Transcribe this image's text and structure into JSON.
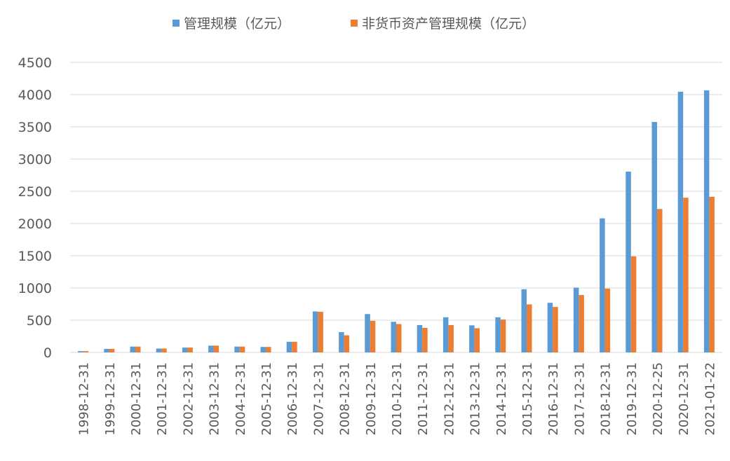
{
  "chart_data": {
    "type": "bar",
    "title": "",
    "xlabel": "",
    "ylabel": "",
    "ylim": [
      0,
      4500
    ],
    "yticks": [
      0,
      500,
      1000,
      1500,
      2000,
      2500,
      3000,
      3500,
      4000,
      4500
    ],
    "grid": true,
    "legend_position": "top-center",
    "categories": [
      "1998-12-31",
      "1999-12-31",
      "2000-12-31",
      "2001-12-31",
      "2002-12-31",
      "2003-12-31",
      "2004-12-31",
      "2005-12-31",
      "2006-12-31",
      "2007-12-31",
      "2008-12-31",
      "2009-12-31",
      "2010-12-31",
      "2011-12-31",
      "2012-12-31",
      "2013-12-31",
      "2014-12-31",
      "2015-12-31",
      "2016-12-31",
      "2017-12-31",
      "2018-12-31",
      "2019-12-31",
      "2020-12-25",
      "2020-12-31",
      "2021-01-22"
    ],
    "series": [
      {
        "name": "管理规模（亿元）",
        "color": "#5B9BD5",
        "values": [
          20,
          55,
          90,
          60,
          75,
          105,
          90,
          85,
          165,
          635,
          315,
          595,
          475,
          425,
          545,
          420,
          545,
          980,
          770,
          1005,
          2080,
          2805,
          3575,
          4045,
          4065
        ]
      },
      {
        "name": "非货币资产管理规模（亿元）",
        "color": "#ED7D31",
        "values": [
          20,
          55,
          90,
          60,
          75,
          105,
          90,
          85,
          165,
          630,
          265,
          490,
          440,
          380,
          425,
          375,
          510,
          745,
          705,
          890,
          990,
          1490,
          2225,
          2400,
          2415
        ]
      }
    ]
  }
}
